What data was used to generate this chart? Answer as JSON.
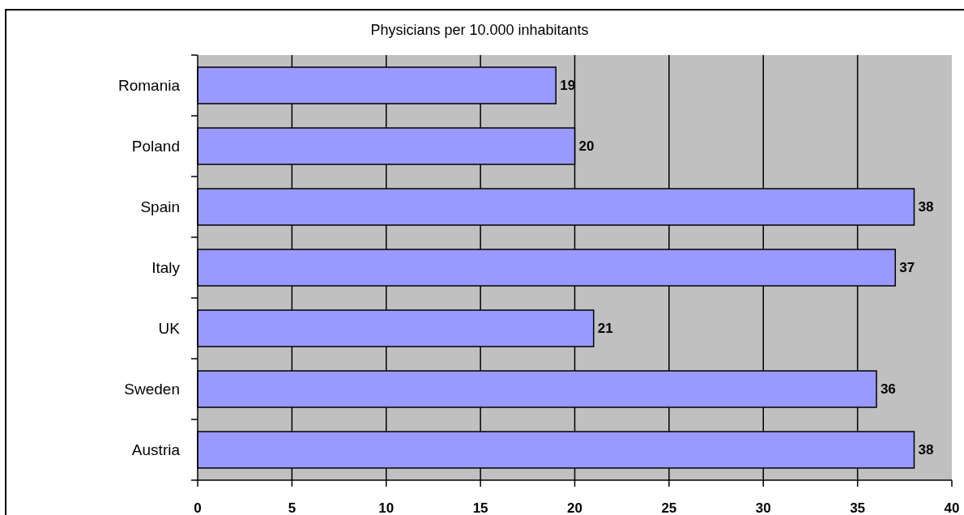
{
  "chart_data": {
    "type": "bar",
    "orientation": "horizontal",
    "title": "Physicians per 10.000 inhabitants",
    "categories": [
      "Romania",
      "Poland",
      "Spain",
      "Italy",
      "UK",
      "Sweden",
      "Austria"
    ],
    "values": [
      19,
      20,
      38,
      37,
      21,
      36,
      38
    ],
    "color": "#9999ff",
    "xlim": [
      0,
      40
    ],
    "xticks": [
      0,
      5,
      10,
      15,
      20,
      25,
      30,
      35,
      40
    ],
    "grid": "x",
    "data_labels": true
  }
}
